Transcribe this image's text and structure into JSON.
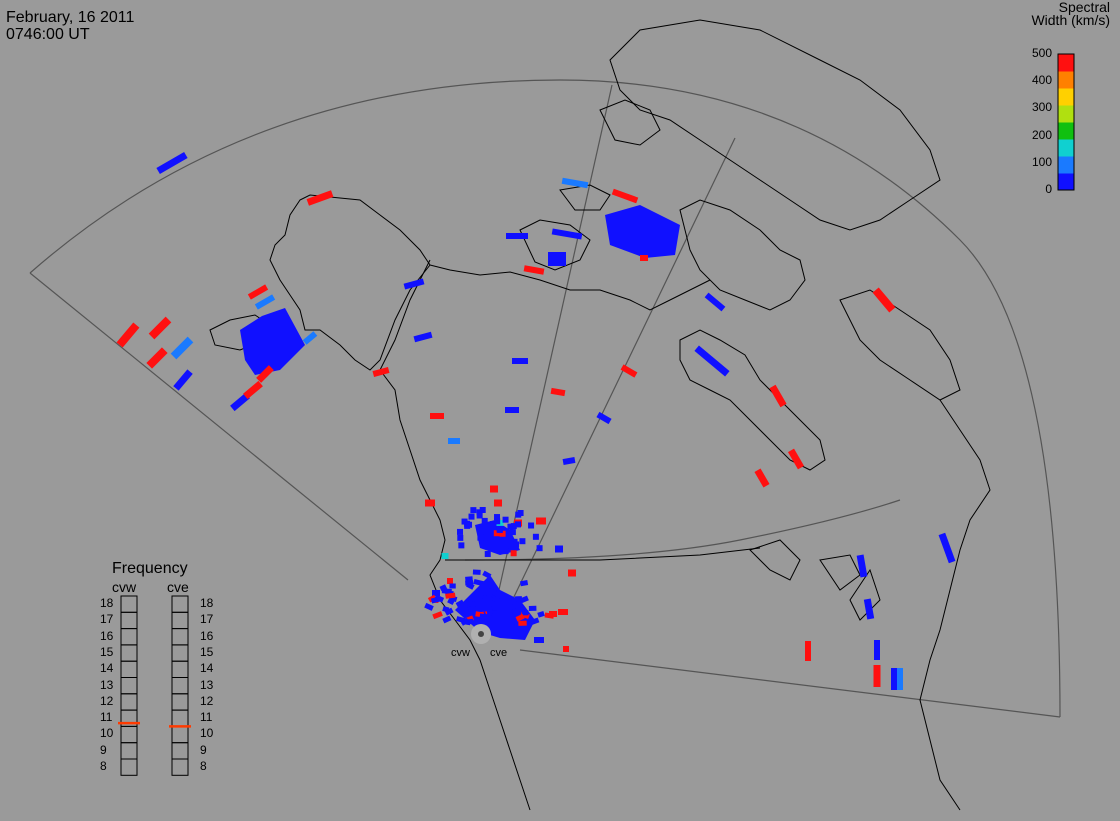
{
  "header": {
    "date": "February, 16 2011",
    "time": "0746:00 UT"
  },
  "colorbar": {
    "title_line1": "Spectral",
    "title_line2": "Width (km/s)",
    "ticks": [
      "500",
      "400",
      "300",
      "200",
      "100",
      "0"
    ],
    "colors": [
      "#1010ff",
      "#1a7aff",
      "#10d0d0",
      "#10c010",
      "#b0e010",
      "#ffd000",
      "#ff8000",
      "#ff1010"
    ]
  },
  "frequency": {
    "title": "Frequency",
    "radars": [
      "cvw",
      "cve"
    ],
    "levels": [
      "18",
      "17",
      "16",
      "15",
      "14",
      "13",
      "12",
      "11",
      "10",
      "9",
      "8"
    ],
    "cvw_value": 10.7,
    "cve_value": 10.5,
    "marker_color": "#ff3a00"
  },
  "radar_labels": {
    "west": "cvw",
    "east": "cve"
  },
  "map": {
    "background": "#9a9a9a",
    "coast_color": "#000000",
    "fov_color": "#555555"
  }
}
